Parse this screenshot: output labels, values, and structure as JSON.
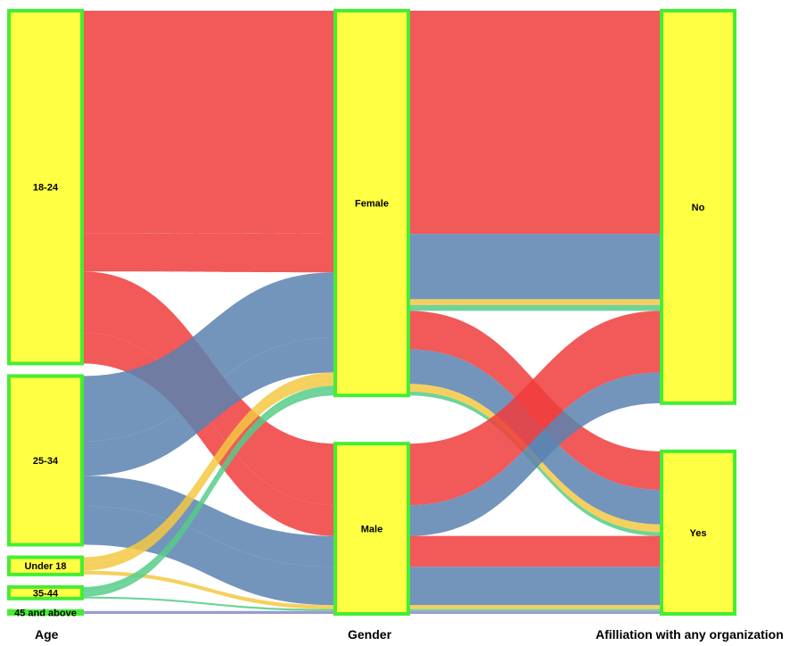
{
  "axes": [
    {
      "label": "Age",
      "nodes": [
        "18-24",
        "25-34",
        "Under 18",
        "35-44",
        "45 and above"
      ]
    },
    {
      "label": "Gender",
      "nodes": [
        "Female",
        "Male"
      ]
    },
    {
      "label": "Afilliation with any organization",
      "nodes": [
        "No",
        "Yes"
      ]
    }
  ],
  "link_colors": {
    "18-24": "#f03c3c",
    "25-34": "#5a82b0",
    "Under 18": "#f5c842",
    "35-44": "#55cc88",
    "45 and above": "#8a8ac8"
  },
  "flows": [
    {
      "age": "18-24",
      "gender": "Female",
      "affiliation": "No",
      "value": 116
    },
    {
      "age": "18-24",
      "gender": "Female",
      "affiliation": "Yes",
      "value": 20
    },
    {
      "age": "18-24",
      "gender": "Male",
      "affiliation": "No",
      "value": 32
    },
    {
      "age": "18-24",
      "gender": "Male",
      "affiliation": "Yes",
      "value": 16
    },
    {
      "age": "25-34",
      "gender": "Female",
      "affiliation": "No",
      "value": 34
    },
    {
      "age": "25-34",
      "gender": "Female",
      "affiliation": "Yes",
      "value": 18
    },
    {
      "age": "25-34",
      "gender": "Male",
      "affiliation": "No",
      "value": 16
    },
    {
      "age": "25-34",
      "gender": "Male",
      "affiliation": "Yes",
      "value": 20
    },
    {
      "age": "Under 18",
      "gender": "Female",
      "affiliation": "No",
      "value": 3
    },
    {
      "age": "Under 18",
      "gender": "Female",
      "affiliation": "Yes",
      "value": 4
    },
    {
      "age": "Under 18",
      "gender": "Male",
      "affiliation": "Yes",
      "value": 2
    },
    {
      "age": "35-44",
      "gender": "Female",
      "affiliation": "No",
      "value": 3
    },
    {
      "age": "35-44",
      "gender": "Female",
      "affiliation": "Yes",
      "value": 2
    },
    {
      "age": "35-44",
      "gender": "Male",
      "affiliation": "Yes",
      "value": 1
    },
    {
      "age": "45 and above",
      "gender": "Male",
      "affiliation": "Yes",
      "value": 1.5
    }
  ]
}
